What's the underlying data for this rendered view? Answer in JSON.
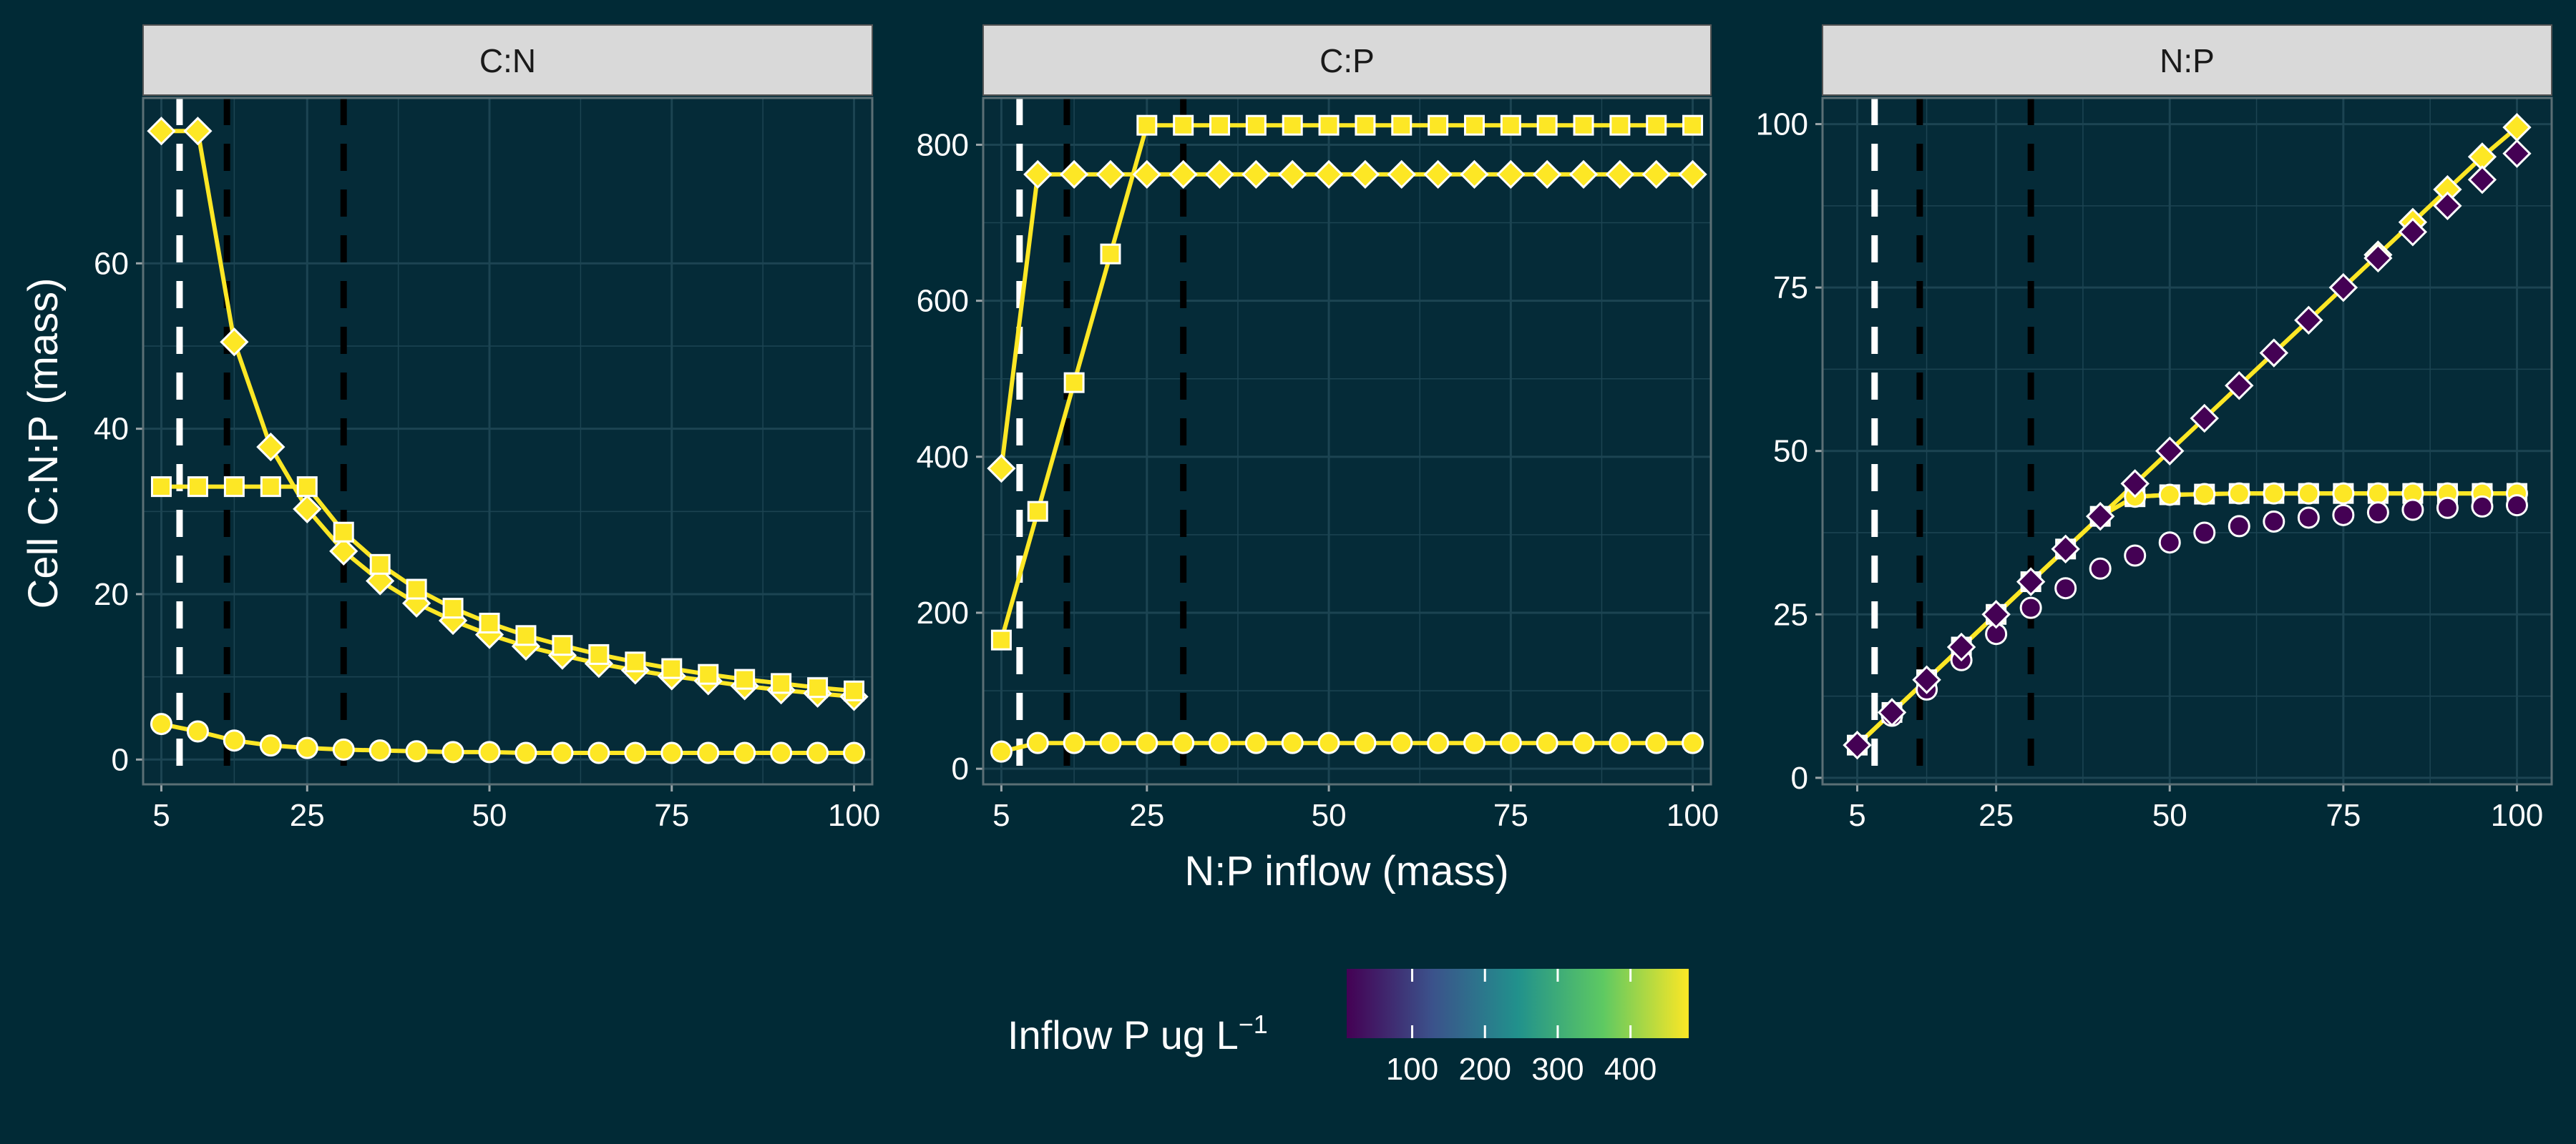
{
  "figure": {
    "y_axis_title": "Cell C:N:P (mass)",
    "x_axis_title": "N:P inflow (mass)",
    "legend": {
      "title_main": "Inflow P ug L",
      "title_sup": "−1",
      "ticks": [
        100,
        200,
        300,
        400
      ],
      "range": [
        10,
        480
      ],
      "colormap": [
        "#440154",
        "#3b528b",
        "#21918c",
        "#5ec962",
        "#fde725"
      ]
    },
    "colors": {
      "background": "#012a36",
      "panel": "#052b38",
      "grid": "#1c4452",
      "strip": "#d9d9d9",
      "line": "#fde725"
    }
  },
  "chart_data": [
    {
      "type": "line",
      "panel": "C:N",
      "xlim": [
        2.5,
        102.5
      ],
      "ylim": [
        -3,
        80
      ],
      "xticks": [
        5,
        25,
        50,
        75,
        100
      ],
      "yticks": [
        0,
        20,
        40,
        60
      ],
      "vlines": [
        {
          "x": 7.5,
          "color": "white"
        },
        {
          "x": 14,
          "color": "black"
        },
        {
          "x": 30,
          "color": "black"
        }
      ],
      "x": [
        5,
        10,
        15,
        20,
        25,
        30,
        35,
        40,
        45,
        50,
        55,
        60,
        65,
        70,
        75,
        80,
        85,
        90,
        95,
        100
      ],
      "series": [
        {
          "marker": "diamond",
          "values": [
            76,
            76,
            50.5,
            37.8,
            30.3,
            25.2,
            21.6,
            18.9,
            16.8,
            15.1,
            13.7,
            12.6,
            11.6,
            10.8,
            10.1,
            9.5,
            8.9,
            8.4,
            8.0,
            7.6
          ]
        },
        {
          "marker": "square",
          "values": [
            33,
            33,
            33,
            33,
            33,
            27.5,
            23.6,
            20.6,
            18.3,
            16.5,
            15.0,
            13.8,
            12.7,
            11.8,
            11.0,
            10.3,
            9.7,
            9.2,
            8.7,
            8.3
          ]
        },
        {
          "marker": "circle",
          "values": [
            4.3,
            3.4,
            2.3,
            1.7,
            1.4,
            1.2,
            1.1,
            1.0,
            0.9,
            0.9,
            0.8,
            0.8,
            0.8,
            0.8,
            0.8,
            0.8,
            0.8,
            0.8,
            0.8,
            0.8
          ]
        }
      ]
    },
    {
      "type": "line",
      "panel": "C:P",
      "xlim": [
        2.5,
        102.5
      ],
      "ylim": [
        -20,
        860
      ],
      "xticks": [
        5,
        25,
        50,
        75,
        100
      ],
      "yticks": [
        0,
        200,
        400,
        600,
        800
      ],
      "vlines": [
        {
          "x": 7.5,
          "color": "white"
        },
        {
          "x": 14,
          "color": "black"
        },
        {
          "x": 30,
          "color": "black"
        }
      ],
      "x": [
        5,
        10,
        15,
        20,
        25,
        30,
        35,
        40,
        45,
        50,
        55,
        60,
        65,
        70,
        75,
        80,
        85,
        90,
        95,
        100
      ],
      "series": [
        {
          "marker": "diamond",
          "values": [
            385,
            762,
            762,
            762,
            762,
            762,
            762,
            762,
            762,
            762,
            762,
            762,
            762,
            762,
            762,
            762,
            762,
            762,
            762,
            762
          ]
        },
        {
          "marker": "square",
          "values": [
            165,
            330,
            495,
            660,
            825,
            825,
            825,
            825,
            825,
            825,
            825,
            825,
            825,
            825,
            825,
            825,
            825,
            825,
            825,
            825
          ]
        },
        {
          "marker": "circle",
          "values": [
            22,
            33,
            33,
            33,
            33,
            33,
            33,
            33,
            33,
            33,
            33,
            33,
            33,
            33,
            33,
            33,
            33,
            33,
            33,
            33
          ]
        }
      ]
    },
    {
      "type": "line",
      "panel": "N:P",
      "xlim": [
        0,
        105
      ],
      "ylim": [
        -1,
        104
      ],
      "xticks": [
        5,
        25,
        50,
        75,
        100
      ],
      "yticks": [
        0,
        25,
        50,
        75,
        100
      ],
      "vlines": [
        {
          "x": 7.5,
          "color": "white"
        },
        {
          "x": 14,
          "color": "black"
        },
        {
          "x": 30,
          "color": "black"
        }
      ],
      "x": [
        5,
        10,
        15,
        20,
        25,
        30,
        35,
        40,
        45,
        50,
        55,
        60,
        65,
        70,
        75,
        80,
        85,
        90,
        95,
        100
      ],
      "series": [
        {
          "marker": "diamond",
          "values": [
            5,
            10,
            15,
            20,
            25,
            30,
            35,
            40,
            45,
            50,
            55,
            60,
            65,
            70,
            75,
            80,
            85,
            90,
            95,
            99.5
          ]
        },
        {
          "marker": "square",
          "values": [
            5,
            10,
            15,
            20,
            25,
            30,
            35,
            40,
            43,
            43.3,
            43.4,
            43.5,
            43.5,
            43.5,
            43.5,
            43.5,
            43.5,
            43.5,
            43.5,
            43.5
          ]
        },
        {
          "marker": "circle",
          "values": [
            5,
            10,
            15,
            20,
            25,
            30,
            35,
            40,
            43,
            43.3,
            43.4,
            43.5,
            43.5,
            43.5,
            43.5,
            43.5,
            43.5,
            43.5,
            43.5,
            43.5
          ]
        },
        {
          "marker": "circle",
          "color": "#440154",
          "line": false,
          "values": [
            5,
            9.5,
            13.5,
            18,
            22,
            26,
            29,
            32,
            34,
            36,
            37.5,
            38.5,
            39.2,
            39.8,
            40.2,
            40.6,
            41,
            41.3,
            41.5,
            41.7
          ]
        },
        {
          "marker": "diamond",
          "color": "#440154",
          "line": false,
          "values": [
            5,
            10,
            15,
            20,
            25,
            30,
            35,
            40,
            45,
            50,
            55,
            60,
            65,
            70,
            75,
            79.5,
            83.5,
            87.5,
            91.5,
            95.5
          ]
        }
      ]
    }
  ]
}
